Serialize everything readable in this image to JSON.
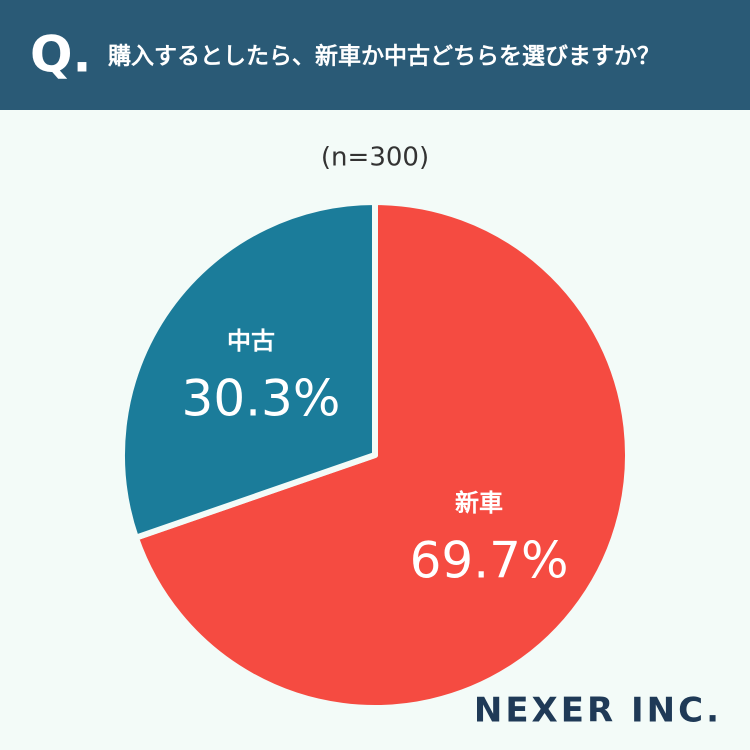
{
  "question_marker": "Q.",
  "chart_data": {
    "type": "pie",
    "title": "購入するとしたら、新車か中古どちらを選びますか？",
    "subtitle": "(n=300)",
    "categories": [
      "新車",
      "中古"
    ],
    "values": [
      69.7,
      30.3
    ],
    "value_labels": [
      "69.7%",
      "30.3%"
    ],
    "colors": [
      "#f54b41",
      "#1b7c9a"
    ]
  },
  "logo": "NEXER INC."
}
